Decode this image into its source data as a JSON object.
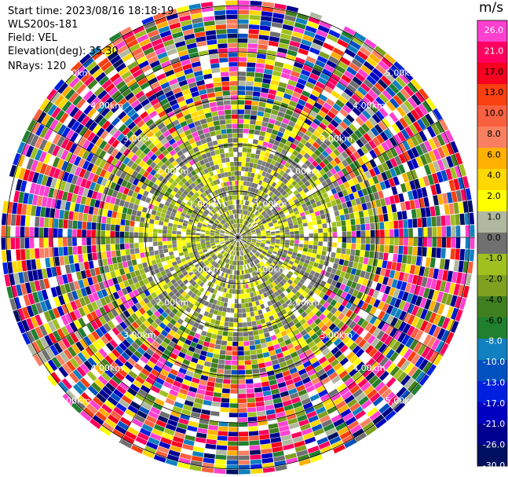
{
  "header": {
    "start_time": "Start time: 2023/08/16 18:18:19",
    "instrument": "WLS200s-181",
    "field": "Field: VEL",
    "elevation": "Elevation(deg): 35.30",
    "nrays": "NRays: 120"
  },
  "colorbar": {
    "unit": "m/s",
    "ticks": [
      "26.0",
      "21.0",
      "17.0",
      "13.0",
      "10.0",
      "8.0",
      "6.0",
      "4.0",
      "2.0",
      "1.0",
      "0.0",
      "-1.0",
      "-2.0",
      "-4.0",
      "-6.0",
      "-8.0",
      "-10.0",
      "-13.0",
      "-17.0",
      "-21.0",
      "-26.0",
      "-30.0"
    ],
    "colors": [
      "#ff40d0",
      "#ff0060",
      "#f80020",
      "#f84010",
      "#f86040",
      "#f88060",
      "#ffb000",
      "#ffd800",
      "#ffff00",
      "#b0b8a0",
      "#707070",
      "#a0c020",
      "#80a020",
      "#408020",
      "#208030",
      "#1080c0",
      "#0050c0",
      "#0020e0",
      "#0000c0",
      "#000090",
      "#001060"
    ]
  },
  "chart_data": {
    "type": "ppi",
    "field": "VEL",
    "unit": "m/s",
    "elevation_deg": 35.3,
    "nrays": 120,
    "range_ring_labels": [
      "1.00km",
      "2.00km",
      "3.00km",
      "4.00km",
      "5.00km"
    ],
    "value_range": [
      -30.0,
      26.0
    ],
    "inner_region": "mostly grey (about 0 m/s) and green (-1 to -4 m/s) with yellow patches (+1 to +2 m/s) near center",
    "outer_region": "noisy mixed colors across full scale beyond about 3 km"
  }
}
